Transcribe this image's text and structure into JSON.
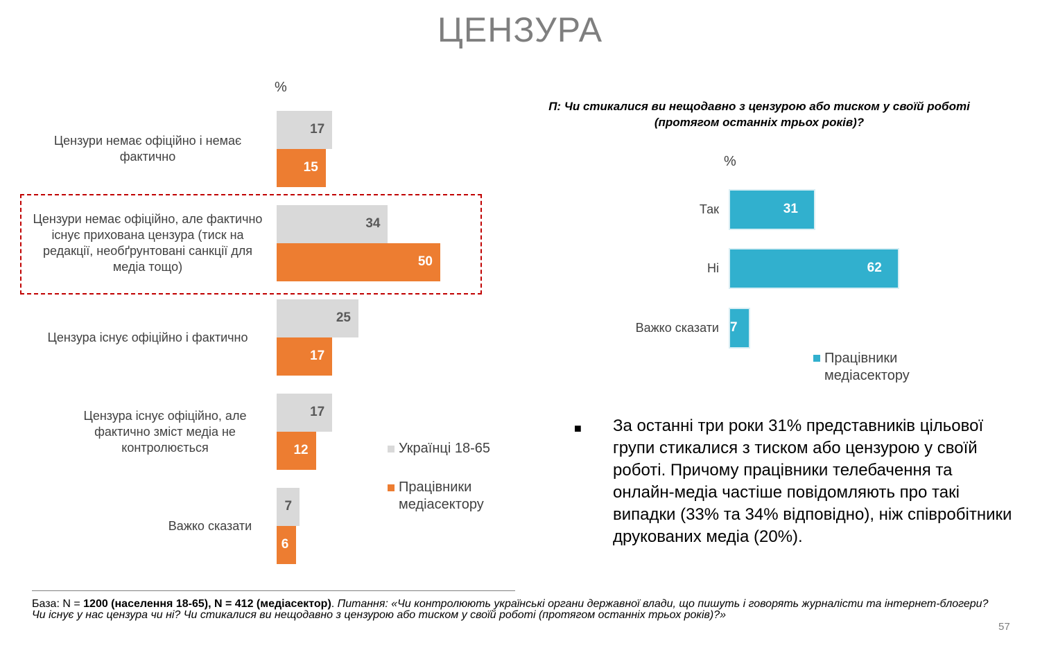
{
  "title": "ЦЕНЗУРА",
  "left_chart": {
    "unit": "%",
    "highlighted_category_index": 1,
    "colors": {
      "ukrainians": "#d9d9d9",
      "media": "#ed7d31"
    },
    "categories": [
      "Цензури немає офіційно і немає фактично",
      "Цензури немає офіційно, але фактично існує прихована цензура (тиск на редакції, необґрунтовані санкції для медіа тощо)",
      "Цензура існує офіційно і фактично",
      "Цензура існує офіційно, але фактично зміст медіа не контролюється",
      "Важко сказати"
    ],
    "legend": [
      "Українці 18-65",
      "Працівники медіасектору"
    ]
  },
  "right_chart": {
    "question": "П: Чи стикалися ви нещодавно з цензурою або тиском у своїй роботі (протягом останніх трьох років)?",
    "unit": "%",
    "color": "#31b0ce",
    "categories": [
      "Так",
      "Ні",
      "Важко сказати"
    ],
    "legend": [
      "Працівники медіасектору"
    ]
  },
  "chart_data": [
    {
      "type": "bar",
      "orientation": "horizontal",
      "categories": [
        "Цензури немає офіційно і немає фактично",
        "Цензури немає офіційно, але фактично існує прихована цензура (тиск на редакції, необґрунтовані санкції для медіа тощо)",
        "Цензура існує офіційно і фактично",
        "Цензура існує офіційно, але фактично зміст медіа не контролюється",
        "Важко сказати"
      ],
      "series": [
        {
          "name": "Українці 18-65",
          "values": [
            17,
            34,
            25,
            17,
            7
          ]
        },
        {
          "name": "Працівники медіасектору",
          "values": [
            15,
            50,
            17,
            12,
            6
          ]
        }
      ],
      "ylabel": "%",
      "legend_position": "right"
    },
    {
      "type": "bar",
      "orientation": "horizontal",
      "categories": [
        "Так",
        "Ні",
        "Важко сказати"
      ],
      "series": [
        {
          "name": "Працівники медіасектору",
          "values": [
            31,
            62,
            7
          ]
        }
      ],
      "title": "П: Чи стикалися ви нещодавно з цензурою або тиском у своїй роботі (протягом останніх трьох років)?",
      "ylabel": "%",
      "legend_position": "bottom"
    }
  ],
  "bullet": {
    "mark": "■",
    "text": "За останні три роки 31% представників цільової групи стикалися з тиском або цензурою у своїй роботі. Причому працівники телебачення та онлайн-медіа частіше повідомляють про такі випадки (33% та 34% відповідно), ніж співробітники друкованих медіа (20%)."
  },
  "footnote": {
    "base_label": "База: N = ",
    "n1": "1200 (населення 18-65)",
    "sep": ", N = ",
    "n2": "412 (медіасектор)",
    "dot": ". ",
    "question": "Питання: «Чи контролюють українські органи державної влади, що пишуть і говорять журналісти та інтернет-блогери? Чи існує у нас цензура чи ні? Чи стикалися ви нещодавно з цензурою або тиском у своїй роботі (протягом останніх трьох років)?»"
  },
  "page_number": "57"
}
